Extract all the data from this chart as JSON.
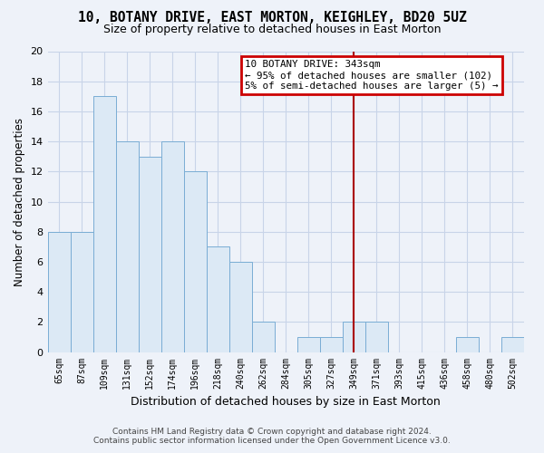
{
  "title": "10, BOTANY DRIVE, EAST MORTON, KEIGHLEY, BD20 5UZ",
  "subtitle": "Size of property relative to detached houses in East Morton",
  "xlabel": "Distribution of detached houses by size in East Morton",
  "ylabel": "Number of detached properties",
  "bin_labels": [
    "65sqm",
    "87sqm",
    "109sqm",
    "131sqm",
    "152sqm",
    "174sqm",
    "196sqm",
    "218sqm",
    "240sqm",
    "262sqm",
    "284sqm",
    "305sqm",
    "327sqm",
    "349sqm",
    "371sqm",
    "393sqm",
    "415sqm",
    "436sqm",
    "458sqm",
    "480sqm",
    "502sqm"
  ],
  "bar_values": [
    8,
    8,
    17,
    14,
    13,
    14,
    12,
    7,
    6,
    2,
    0,
    1,
    1,
    2,
    2,
    0,
    0,
    0,
    1,
    0,
    1
  ],
  "bar_color": "#dce9f5",
  "bar_edge_color": "#7aadd4",
  "background_color": "#eef2f9",
  "grid_color": "#c8d4e8",
  "marker_value_index": 13,
  "marker_line_color": "#aa0000",
  "annotation_line1": "10 BOTANY DRIVE: 343sqm",
  "annotation_line2": "← 95% of detached houses are smaller (102)",
  "annotation_line3": "5% of semi-detached houses are larger (5) →",
  "footer_line1": "Contains HM Land Registry data © Crown copyright and database right 2024.",
  "footer_line2": "Contains public sector information licensed under the Open Government Licence v3.0.",
  "ylim": [
    0,
    20
  ],
  "yticks": [
    0,
    2,
    4,
    6,
    8,
    10,
    12,
    14,
    16,
    18,
    20
  ],
  "title_fontsize": 10.5,
  "subtitle_fontsize": 9,
  "ylabel_fontsize": 8.5,
  "xlabel_fontsize": 9,
  "tick_fontsize": 8,
  "xtick_fontsize": 7
}
